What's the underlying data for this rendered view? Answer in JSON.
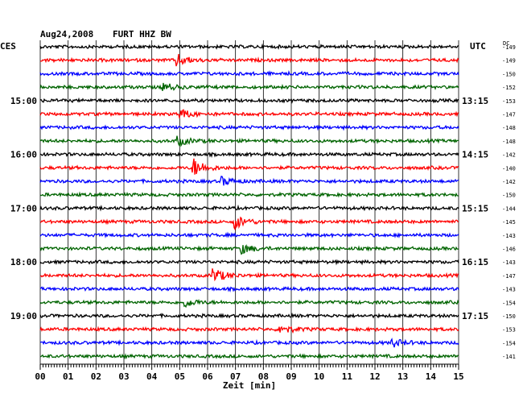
{
  "header": {
    "date": "Aug24,2008",
    "station": "FURT HHZ BW",
    "left_tz": "CES",
    "right_tz": "UTC",
    "dc_label": "DC"
  },
  "chart_data": {
    "type": "line",
    "title": "Aug24,2008   FURT HHZ BW",
    "xlabel": "Zeit [min]",
    "ylabel": "",
    "x_ticks": [
      "00",
      "01",
      "02",
      "03",
      "04",
      "05",
      "06",
      "07",
      "08",
      "09",
      "10",
      "11",
      "12",
      "13",
      "14",
      "15"
    ],
    "xlim": [
      0,
      15
    ],
    "grid": true,
    "trace_colors": [
      "#000000",
      "#ff0000",
      "#0000ff",
      "#006400"
    ],
    "left_hour_labels": [
      {
        "label": "15:00",
        "trace": 4
      },
      {
        "label": "16:00",
        "trace": 8
      },
      {
        "label": "17:00",
        "trace": 12
      },
      {
        "label": "18:00",
        "trace": 16
      },
      {
        "label": "19:00",
        "trace": 20
      }
    ],
    "right_hour_labels": [
      {
        "label": "13:15",
        "trace": 4
      },
      {
        "label": "14:15",
        "trace": 8
      },
      {
        "label": "15:15",
        "trace": 12
      },
      {
        "label": "16:15",
        "trace": 16
      },
      {
        "label": "17:15",
        "trace": 20
      }
    ],
    "dc_offsets": [
      "-149",
      "-149",
      "-150",
      "-152",
      "-153",
      "-147",
      "-148",
      "-148",
      "-142",
      "-140",
      "-142",
      "-150",
      "-144",
      "-145",
      "-143",
      "-146",
      "-143",
      "-147",
      "-143",
      "-154",
      "-150",
      "-153",
      "-154",
      "-141"
    ],
    "events": [
      {
        "trace": 1,
        "minute": 4.9,
        "amp": 7
      },
      {
        "trace": 3,
        "minute": 4.4,
        "amp": 5
      },
      {
        "trace": 5,
        "minute": 5.0,
        "amp": 6
      },
      {
        "trace": 7,
        "minute": 4.9,
        "amp": 6
      },
      {
        "trace": 9,
        "minute": 5.5,
        "amp": 11
      },
      {
        "trace": 10,
        "minute": 6.5,
        "amp": 5
      },
      {
        "trace": 13,
        "minute": 7.0,
        "amp": 8
      },
      {
        "trace": 15,
        "minute": 7.2,
        "amp": 6
      },
      {
        "trace": 17,
        "minute": 6.2,
        "amp": 9
      },
      {
        "trace": 19,
        "minute": 5.2,
        "amp": 5
      },
      {
        "trace": 21,
        "minute": 8.6,
        "amp": 6
      },
      {
        "trace": 22,
        "minute": 12.6,
        "amp": 5
      }
    ]
  }
}
